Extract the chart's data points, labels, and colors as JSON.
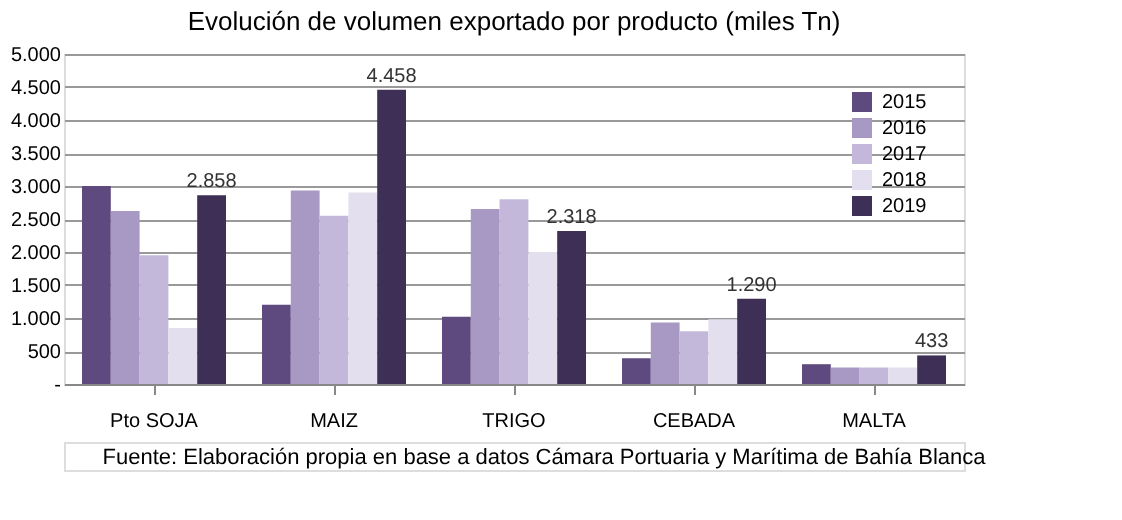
{
  "chart_data": {
    "type": "bar",
    "title": "Evolución de volumen exportado por producto (miles Tn)",
    "categories": [
      "Pto SOJA",
      "MAIZ",
      "TRIGO",
      "CEBADA",
      "MALTA"
    ],
    "series": [
      {
        "name": "2015",
        "color": "#5e4a7e",
        "values": [
          3000,
          1200,
          1020,
          390,
          300
        ]
      },
      {
        "name": "2016",
        "color": "#a899c4",
        "values": [
          2620,
          2930,
          2650,
          930,
          250
        ]
      },
      {
        "name": "2017",
        "color": "#c4b8da",
        "values": [
          1950,
          2550,
          2800,
          800,
          250
        ]
      },
      {
        "name": "2018",
        "color": "#e4dfee",
        "values": [
          850,
          2900,
          2000,
          980,
          250
        ]
      },
      {
        "name": "2019",
        "color": "#3d2f55",
        "values": [
          2858,
          4458,
          2318,
          1290,
          433
        ],
        "value_labels": [
          "2.858",
          "4.458",
          "2.318",
          "1.290",
          "433"
        ]
      }
    ],
    "ylim": [
      0,
      5000
    ],
    "yticks": [
      {
        "value": 0,
        "label": "-"
      },
      {
        "value": 500,
        "label": "500"
      },
      {
        "value": 1000,
        "label": "1.000"
      },
      {
        "value": 1500,
        "label": "1.500"
      },
      {
        "value": 2000,
        "label": "2.000"
      },
      {
        "value": 2500,
        "label": "2.500"
      },
      {
        "value": 3000,
        "label": "3.000"
      },
      {
        "value": 3500,
        "label": "3.500"
      },
      {
        "value": 4000,
        "label": "4.000"
      },
      {
        "value": 4500,
        "label": "4.500"
      },
      {
        "value": 5000,
        "label": "5.000"
      }
    ],
    "grid": "y",
    "legend": "top right",
    "annotations": [
      "Fuente: Elaboración propia en base a datos Cámara Portuaria y Marítima de Bahía Blanca"
    ]
  }
}
